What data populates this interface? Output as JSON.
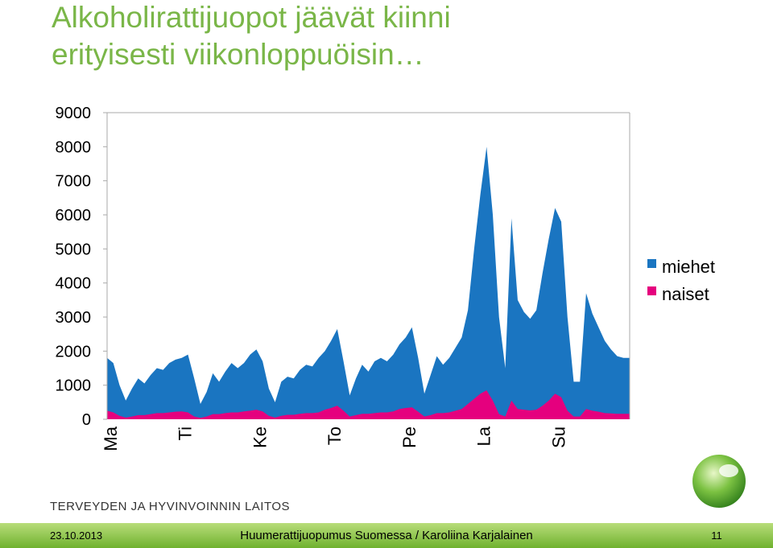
{
  "chart_data": {
    "type": "area",
    "title_lines": [
      "Alkoholirattijuopot jäävät kiinni",
      "erityisesti viikonloppuöisin…"
    ],
    "categories": [
      "Ma",
      null,
      null,
      null,
      null,
      null,
      null,
      null,
      null,
      null,
      null,
      null,
      "Ti",
      null,
      null,
      null,
      null,
      null,
      null,
      null,
      null,
      null,
      null,
      null,
      "Ke",
      null,
      null,
      null,
      null,
      null,
      null,
      null,
      null,
      null,
      null,
      null,
      "To",
      null,
      null,
      null,
      null,
      null,
      null,
      null,
      null,
      null,
      null,
      null,
      "Pe",
      null,
      null,
      null,
      null,
      null,
      null,
      null,
      null,
      null,
      null,
      null,
      "La",
      null,
      null,
      null,
      null,
      null,
      null,
      null,
      null,
      null,
      null,
      null,
      "Su",
      null,
      null,
      null,
      null,
      null,
      null,
      null,
      null,
      null,
      null,
      null
    ],
    "series": [
      {
        "name": "miehet",
        "color": "#1a75c1",
        "values": [
          1800,
          1650,
          1000,
          550,
          900,
          1200,
          1050,
          1300,
          1500,
          1450,
          1650,
          1750,
          1800,
          1900,
          1200,
          450,
          800,
          1350,
          1100,
          1400,
          1650,
          1500,
          1650,
          1900,
          2050,
          1700,
          900,
          500,
          1100,
          1250,
          1200,
          1450,
          1600,
          1550,
          1800,
          2000,
          2300,
          2650,
          1700,
          700,
          1200,
          1600,
          1400,
          1700,
          1800,
          1700,
          1900,
          2200,
          2400,
          2700,
          1800,
          750,
          1300,
          1850,
          1600,
          1800,
          2100,
          2400,
          3200,
          5000,
          6600,
          8000,
          6000,
          3000,
          1500,
          5900,
          3500,
          3150,
          2950,
          3200,
          4300,
          5300,
          6200,
          5800,
          3000,
          1100,
          1100,
          3700,
          3100,
          2700,
          2300,
          2050,
          1850,
          1800
        ]
      },
      {
        "name": "naiset",
        "color": "#e5007e",
        "values": [
          250,
          200,
          100,
          50,
          80,
          120,
          120,
          150,
          180,
          180,
          200,
          220,
          230,
          200,
          80,
          40,
          80,
          150,
          150,
          180,
          200,
          200,
          230,
          250,
          280,
          230,
          100,
          50,
          100,
          130,
          130,
          160,
          180,
          180,
          200,
          280,
          330,
          400,
          250,
          80,
          120,
          160,
          160,
          180,
          200,
          200,
          230,
          300,
          330,
          350,
          220,
          80,
          120,
          180,
          180,
          200,
          250,
          300,
          450,
          600,
          750,
          850,
          550,
          150,
          80,
          550,
          300,
          280,
          260,
          280,
          400,
          550,
          750,
          650,
          250,
          80,
          80,
          300,
          250,
          220,
          180,
          170,
          160,
          160
        ]
      }
    ],
    "ylim": [
      0,
      9000
    ],
    "yticks": [
      0,
      1000,
      2000,
      3000,
      4000,
      5000,
      6000,
      7000,
      8000,
      9000
    ],
    "legend": "right"
  },
  "footer": {
    "organization": "TERVEYDEN JA HYVINVOINNIN LAITOS",
    "date": "23.10.2013",
    "text": "Huumerattijuopumus Suomessa / Karoliina Karjalainen",
    "page": 11
  }
}
